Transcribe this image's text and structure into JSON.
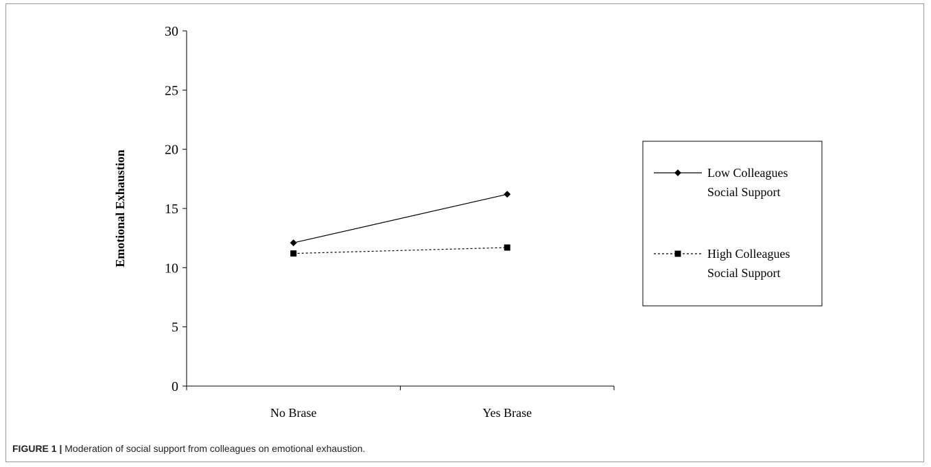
{
  "chart_data": {
    "type": "line",
    "title": "",
    "xlabel": "",
    "ylabel": "Emotional Exhaustion",
    "categories": [
      "No Brase",
      "Yes Brase"
    ],
    "ylim": [
      0,
      30
    ],
    "yticks": [
      0,
      5,
      10,
      15,
      20,
      25,
      30
    ],
    "grid": false,
    "legend_position": "right",
    "series": [
      {
        "name": "Low Colleagues Social Support",
        "legend_lines": [
          "Low Colleagues",
          "Social Support"
        ],
        "values": [
          12.1,
          16.2
        ],
        "marker": "diamond",
        "line_style": "solid",
        "color": "#000000"
      },
      {
        "name": "High Colleagues Social Support",
        "legend_lines": [
          "High Colleagues",
          "Social Support"
        ],
        "values": [
          11.2,
          11.7
        ],
        "marker": "square",
        "line_style": "dotted",
        "color": "#000000"
      }
    ]
  },
  "caption": {
    "lead": "FIGURE 1 |",
    "text": " Moderation of social support from colleagues on emotional exhaustion."
  }
}
